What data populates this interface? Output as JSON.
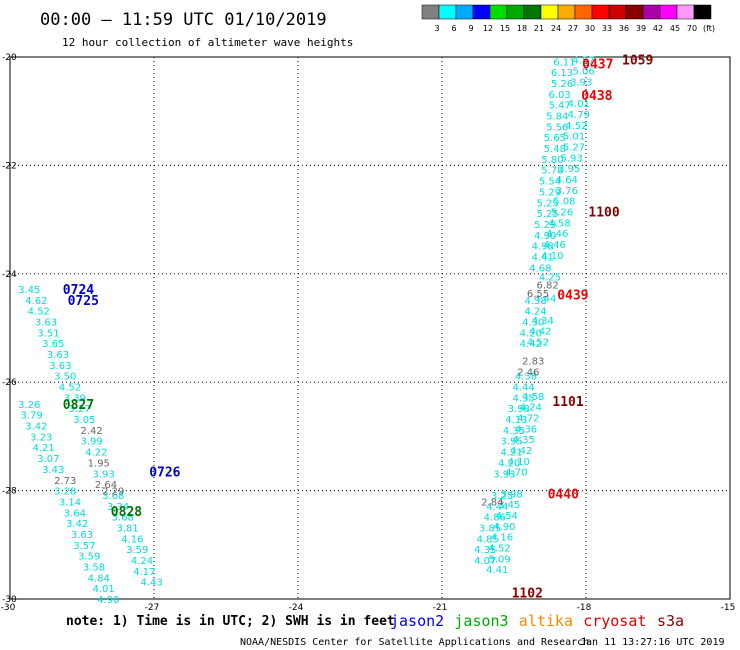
{
  "header": {
    "title": "00:00 – 11:59 UTC 01/10/2019",
    "subtitle": "12 hour collection of altimeter wave heights"
  },
  "colorscale": {
    "colors": [
      "#808080",
      "#00ffff",
      "#00aaff",
      "#0000ff",
      "#00dd00",
      "#00aa00",
      "#007700",
      "#ffff00",
      "#ffaa00",
      "#ff6600",
      "#ff0000",
      "#cc0000",
      "#880000",
      "#aa00aa",
      "#ff00ff",
      "#ff99ff",
      "#000000"
    ],
    "labels": [
      "3",
      "6",
      "9",
      "12",
      "15",
      "18",
      "21",
      "24",
      "27",
      "30",
      "33",
      "36",
      "39",
      "42",
      "45",
      "70",
      "(ft)"
    ]
  },
  "footer": {
    "note": "note: 1) Time is in UTC; 2) SWH is in feet",
    "credit": "NOAA/NESDIS Center for Satellite Applications and Research",
    "timestamp": "Jan 11 13:27:16 UTC 2019"
  },
  "satellites": [
    {
      "name": "jason2",
      "color": "#0000ff"
    },
    {
      "name": "jason3",
      "color": "#00aa00"
    },
    {
      "name": "altika",
      "color": "#ff8800"
    },
    {
      "name": "cryosat",
      "color": "#dd0000"
    },
    {
      "name": "s3a",
      "color": "#880000"
    }
  ],
  "chart_data": {
    "type": "scatter",
    "title": "00:00 – 11:59 UTC 01/10/2019",
    "xlim": [
      -30,
      -15
    ],
    "ylim": [
      -30,
      -20
    ],
    "xticks": [
      -30,
      -27,
      -24,
      -21,
      -18,
      -15
    ],
    "yticks": [
      -20,
      -22,
      -24,
      -26,
      -28,
      -30
    ],
    "grid": true,
    "passes": [
      {
        "satellite": "jason2",
        "color": "#00dddd",
        "points": [
          {
            "x": -29.6,
            "y": -24.28,
            "v": "3.45"
          },
          {
            "x": -29.45,
            "y": -24.48,
            "v": "4.62"
          },
          {
            "x": -29.4,
            "y": -24.68,
            "v": "4.52"
          },
          {
            "x": -29.25,
            "y": -24.88,
            "v": "3.63"
          },
          {
            "x": -29.2,
            "y": -25.08,
            "v": "3.51"
          },
          {
            "x": -29.1,
            "y": -25.28,
            "v": "3.65"
          },
          {
            "x": -29.0,
            "y": -25.48,
            "v": "3.63"
          },
          {
            "x": -28.95,
            "y": -25.68,
            "v": "3.63"
          },
          {
            "x": -28.85,
            "y": -25.88,
            "v": "3.50"
          },
          {
            "x": -28.75,
            "y": -26.08,
            "v": "4.52"
          },
          {
            "x": -28.65,
            "y": -26.28,
            "v": "3.39"
          },
          {
            "x": -28.55,
            "y": -26.48,
            "v": "3.27"
          },
          {
            "x": -28.45,
            "y": -26.68,
            "v": "3.05"
          },
          {
            "x": -28.3,
            "y": -27.08,
            "v": "3.99"
          },
          {
            "x": -28.2,
            "y": -27.28,
            "v": "4.22"
          },
          {
            "x": -28.05,
            "y": -27.68,
            "v": "3.93"
          },
          {
            "x": -27.85,
            "y": -28.08,
            "v": "3.68"
          },
          {
            "x": -27.75,
            "y": -28.28,
            "v": "3.34"
          },
          {
            "x": -27.65,
            "y": -28.48,
            "v": "3.68"
          },
          {
            "x": -27.55,
            "y": -28.68,
            "v": "3.81"
          },
          {
            "x": -27.45,
            "y": -28.88,
            "v": "4.16"
          },
          {
            "x": -27.35,
            "y": -29.08,
            "v": "3.59"
          },
          {
            "x": -27.25,
            "y": -29.28,
            "v": "4.24"
          },
          {
            "x": -27.2,
            "y": -29.48,
            "v": "4.17"
          },
          {
            "x": -27.05,
            "y": -29.68,
            "v": "4.43"
          }
        ]
      },
      {
        "satellite": "jason2",
        "color": "#00dddd",
        "points": [
          {
            "x": -29.6,
            "y": -26.4,
            "v": "3.26"
          },
          {
            "x": -29.55,
            "y": -26.6,
            "v": "3.79"
          },
          {
            "x": -29.45,
            "y": -26.8,
            "v": "3.42"
          },
          {
            "x": -29.35,
            "y": -27.0,
            "v": "3.23"
          },
          {
            "x": -29.3,
            "y": -27.2,
            "v": "4.21"
          },
          {
            "x": -29.2,
            "y": -27.4,
            "v": "3.07"
          },
          {
            "x": -29.1,
            "y": -27.6,
            "v": "3.43"
          },
          {
            "x": -28.85,
            "y": -28.0,
            "v": "3.28"
          },
          {
            "x": -28.75,
            "y": -28.2,
            "v": "3.14"
          },
          {
            "x": -28.65,
            "y": -28.4,
            "v": "3.64"
          },
          {
            "x": -28.6,
            "y": -28.6,
            "v": "3.42"
          },
          {
            "x": -28.5,
            "y": -28.8,
            "v": "3.63"
          },
          {
            "x": -28.45,
            "y": -29.0,
            "v": "3.57"
          },
          {
            "x": -28.35,
            "y": -29.2,
            "v": "3.59"
          },
          {
            "x": -28.25,
            "y": -29.4,
            "v": "3.58"
          },
          {
            "x": -28.15,
            "y": -29.6,
            "v": "4.84"
          },
          {
            "x": -28.05,
            "y": -29.8,
            "v": "4.01"
          },
          {
            "x": -27.95,
            "y": -30.0,
            "v": "4.90"
          }
        ]
      },
      {
        "satellite": "jason2",
        "color": "#666666",
        "points": [
          {
            "x": -28.3,
            "y": -26.88,
            "v": "2.42"
          },
          {
            "x": -28.15,
            "y": -27.48,
            "v": "1.95"
          },
          {
            "x": -28.85,
            "y": -27.8,
            "v": "2.73"
          },
          {
            "x": -28.0,
            "y": -27.88,
            "v": "2.64"
          },
          {
            "x": -27.85,
            "y": -28.0,
            "v": "2.29"
          }
        ]
      },
      {
        "satellite": "jason3",
        "color": "#00dddd",
        "points": [
          {
            "x": -18.45,
            "y": -20.08,
            "v": "6.11"
          },
          {
            "x": -18.5,
            "y": -20.28,
            "v": "6.13"
          },
          {
            "x": -18.5,
            "y": -20.48,
            "v": "5.26"
          },
          {
            "x": -18.55,
            "y": -20.68,
            "v": "6.03"
          },
          {
            "x": -18.55,
            "y": -20.88,
            "v": "5.47"
          },
          {
            "x": -18.6,
            "y": -21.08,
            "v": "5.84"
          },
          {
            "x": -18.6,
            "y": -21.28,
            "v": "5.56"
          },
          {
            "x": -18.65,
            "y": -21.48,
            "v": "5.65"
          },
          {
            "x": -18.65,
            "y": -21.68,
            "v": "5.48"
          },
          {
            "x": -18.7,
            "y": -21.88,
            "v": "5.80"
          },
          {
            "x": -18.7,
            "y": -22.08,
            "v": "5.78"
          },
          {
            "x": -18.75,
            "y": -22.28,
            "v": "5.54"
          },
          {
            "x": -18.75,
            "y": -22.48,
            "v": "5.29"
          },
          {
            "x": -18.8,
            "y": -22.68,
            "v": "5.25"
          },
          {
            "x": -18.8,
            "y": -22.88,
            "v": "5.25"
          },
          {
            "x": -18.85,
            "y": -23.08,
            "v": "5.29"
          },
          {
            "x": -18.85,
            "y": -23.28,
            "v": "4.90"
          },
          {
            "x": -18.9,
            "y": -23.48,
            "v": "4.98"
          },
          {
            "x": -18.9,
            "y": -23.68,
            "v": "4.41"
          },
          {
            "x": -18.95,
            "y": -23.88,
            "v": "4.68"
          },
          {
            "x": -19.05,
            "y": -24.48,
            "v": "4.38"
          },
          {
            "x": -19.05,
            "y": -24.68,
            "v": "4.24"
          },
          {
            "x": -19.1,
            "y": -24.88,
            "v": "4.30"
          },
          {
            "x": -19.15,
            "y": -25.08,
            "v": "4.20"
          },
          {
            "x": -19.15,
            "y": -25.28,
            "v": "4.42"
          },
          {
            "x": -19.25,
            "y": -25.88,
            "v": "4.38"
          },
          {
            "x": -19.3,
            "y": -26.08,
            "v": "4.44"
          },
          {
            "x": -19.3,
            "y": -26.28,
            "v": "4.35"
          },
          {
            "x": -19.4,
            "y": -26.48,
            "v": "3.98"
          },
          {
            "x": -19.45,
            "y": -26.68,
            "v": "4.13"
          },
          {
            "x": -19.5,
            "y": -26.88,
            "v": "4.35"
          },
          {
            "x": -19.55,
            "y": -27.08,
            "v": "3.95"
          },
          {
            "x": -19.55,
            "y": -27.28,
            "v": "4.21"
          },
          {
            "x": -19.6,
            "y": -27.48,
            "v": "4.20"
          },
          {
            "x": -19.7,
            "y": -27.68,
            "v": "3.93"
          },
          {
            "x": -19.75,
            "y": -28.08,
            "v": "3.25"
          },
          {
            "x": -19.85,
            "y": -28.28,
            "v": "4.44"
          },
          {
            "x": -19.9,
            "y": -28.48,
            "v": "4.86"
          },
          {
            "x": -20.0,
            "y": -28.68,
            "v": "3.85"
          },
          {
            "x": -20.05,
            "y": -28.88,
            "v": "4.85"
          },
          {
            "x": -20.1,
            "y": -29.08,
            "v": "4.35"
          },
          {
            "x": -20.1,
            "y": -29.28,
            "v": "4.07"
          }
        ]
      },
      {
        "satellite": "jason3",
        "color": "#00dddd",
        "points": [
          {
            "x": -18.05,
            "y": -20.05,
            "v": "4.57"
          },
          {
            "x": -18.05,
            "y": -20.25,
            "v": "5.06"
          },
          {
            "x": -18.1,
            "y": -20.45,
            "v": "3.93"
          },
          {
            "x": -18.15,
            "y": -20.85,
            "v": "4.01"
          },
          {
            "x": -18.15,
            "y": -21.05,
            "v": "4.79"
          },
          {
            "x": -18.2,
            "y": -21.25,
            "v": "4.52"
          },
          {
            "x": -18.25,
            "y": -21.45,
            "v": "5.01"
          },
          {
            "x": -18.25,
            "y": -21.65,
            "v": "5.27"
          },
          {
            "x": -18.3,
            "y": -21.85,
            "v": "5.93"
          },
          {
            "x": -18.35,
            "y": -22.05,
            "v": "3.95"
          },
          {
            "x": -18.4,
            "y": -22.25,
            "v": "4.64"
          },
          {
            "x": -18.4,
            "y": -22.45,
            "v": "3.76"
          },
          {
            "x": -18.45,
            "y": -22.65,
            "v": "5.08"
          },
          {
            "x": -18.5,
            "y": -22.85,
            "v": "5.26"
          },
          {
            "x": -18.55,
            "y": -23.05,
            "v": "4.58"
          },
          {
            "x": -18.6,
            "y": -23.25,
            "v": "4.46"
          },
          {
            "x": -18.65,
            "y": -23.45,
            "v": "4.46"
          },
          {
            "x": -18.7,
            "y": -23.65,
            "v": "4.10"
          },
          {
            "x": -18.75,
            "y": -24.05,
            "v": "4.25"
          },
          {
            "x": -18.85,
            "y": -24.45,
            "v": "4.44"
          },
          {
            "x": -18.9,
            "y": -24.85,
            "v": "4.34"
          },
          {
            "x": -18.95,
            "y": -25.05,
            "v": "4.42"
          },
          {
            "x": -19.0,
            "y": -25.25,
            "v": "4.52"
          },
          {
            "x": -19.1,
            "y": -26.25,
            "v": "4.58"
          },
          {
            "x": -19.15,
            "y": -26.45,
            "v": "4.24"
          },
          {
            "x": -19.2,
            "y": -26.65,
            "v": "4.72"
          },
          {
            "x": -19.25,
            "y": -26.85,
            "v": "4.36"
          },
          {
            "x": -19.3,
            "y": -27.05,
            "v": "4.35"
          },
          {
            "x": -19.35,
            "y": -27.25,
            "v": "4.42"
          },
          {
            "x": -19.4,
            "y": -27.45,
            "v": "4.10"
          },
          {
            "x": -19.45,
            "y": -27.65,
            "v": "4.70"
          },
          {
            "x": -19.55,
            "y": -28.05,
            "v": "3.98"
          },
          {
            "x": -19.6,
            "y": -28.25,
            "v": "3.45"
          },
          {
            "x": -19.65,
            "y": -28.45,
            "v": "4.54"
          },
          {
            "x": -19.7,
            "y": -28.65,
            "v": "4.90"
          },
          {
            "x": -19.75,
            "y": -28.85,
            "v": "4.16"
          },
          {
            "x": -19.8,
            "y": -29.05,
            "v": "4.52"
          },
          {
            "x": -19.8,
            "y": -29.25,
            "v": "5.09"
          },
          {
            "x": -19.85,
            "y": -29.45,
            "v": "4.41"
          }
        ]
      },
      {
        "satellite": "jason3",
        "color": "#666666",
        "points": [
          {
            "x": -18.8,
            "y": -24.2,
            "v": "6.82"
          },
          {
            "x": -19.0,
            "y": -24.35,
            "v": "6.55"
          },
          {
            "x": -19.1,
            "y": -25.6,
            "v": "2.83"
          },
          {
            "x": -19.2,
            "y": -25.8,
            "v": "2.46"
          },
          {
            "x": -19.95,
            "y": -28.2,
            "v": "2.84"
          }
        ]
      }
    ],
    "time_labels": [
      {
        "text": "0724",
        "x": -28.9,
        "y": -24.28,
        "color": "#0000cc"
      },
      {
        "text": "0725",
        "x": -28.8,
        "y": -24.48,
        "color": "#0000cc"
      },
      {
        "text": "0827",
        "x": -28.9,
        "y": -26.4,
        "color": "#007700"
      },
      {
        "text": "0726",
        "x": -27.1,
        "y": -27.65,
        "color": "#0000cc"
      },
      {
        "text": "0828",
        "x": -27.9,
        "y": -28.38,
        "color": "#007700"
      },
      {
        "text": "0437",
        "x": -18.08,
        "y": -20.12,
        "color": "#ee0000"
      },
      {
        "text": "1059",
        "x": -17.25,
        "y": -20.05,
        "color": "#880000"
      },
      {
        "text": "0438",
        "x": -18.1,
        "y": -20.7,
        "color": "#ee0000"
      },
      {
        "text": "1100",
        "x": -17.95,
        "y": -22.85,
        "color": "#880000"
      },
      {
        "text": "0439",
        "x": -18.6,
        "y": -24.38,
        "color": "#ee0000"
      },
      {
        "text": "1101",
        "x": -18.7,
        "y": -26.35,
        "color": "#880000"
      },
      {
        "text": "0440",
        "x": -18.8,
        "y": -28.05,
        "color": "#ee0000"
      },
      {
        "text": "1102",
        "x": -19.55,
        "y": -29.88,
        "color": "#880000"
      }
    ]
  }
}
